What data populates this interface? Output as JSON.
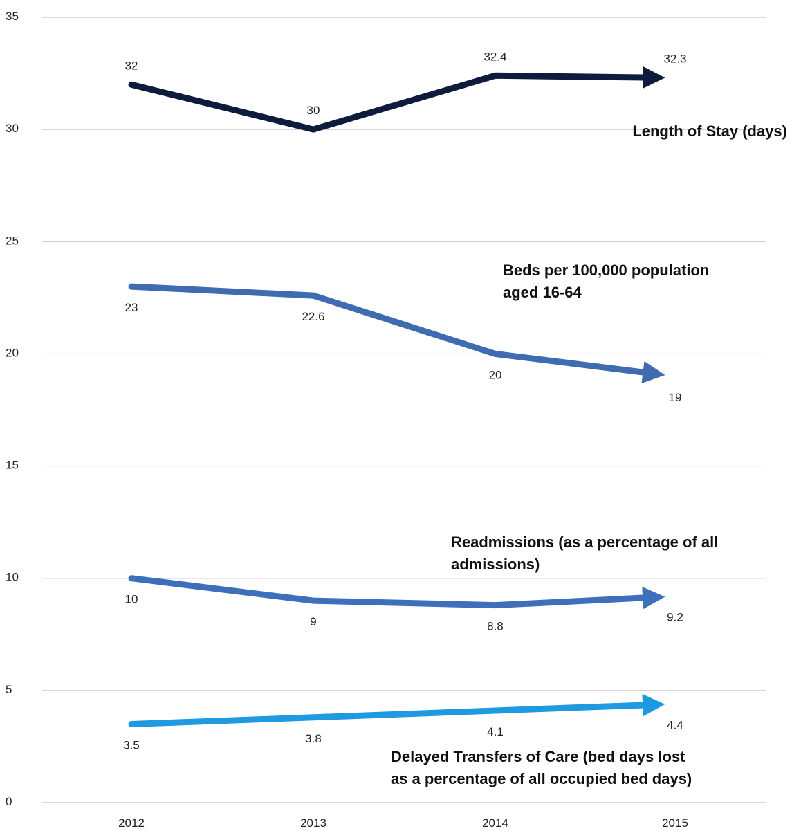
{
  "chart_data": {
    "type": "line",
    "categories": [
      "2012",
      "2013",
      "2014",
      "2015"
    ],
    "ylim": [
      0,
      35
    ],
    "yticks": [
      "0",
      "5",
      "10",
      "15",
      "20",
      "25",
      "30",
      "35"
    ],
    "grid": true,
    "series": [
      {
        "name": "Length of Stay (days)",
        "values": [
          32,
          30,
          32.4,
          32.3
        ],
        "labels": [
          "32",
          "30",
          "32.4",
          "32.3"
        ],
        "color": "#0f1b3d",
        "label_lines": [
          "Length of Stay (days)"
        ]
      },
      {
        "name": "Beds per 100,000 population aged 16-64",
        "values": [
          23,
          22.6,
          20,
          19
        ],
        "labels": [
          "23",
          "22.6",
          "20",
          "19"
        ],
        "color": "#3f6bb0",
        "label_lines": [
          "Beds per 100,000 population",
          "aged 16-64"
        ]
      },
      {
        "name": "Readmissions (as a percentage of all admissions)",
        "values": [
          10,
          9,
          8.8,
          9.2
        ],
        "labels": [
          "10",
          "9",
          "8.8",
          "9.2"
        ],
        "color": "#3e6fba",
        "label_lines": [
          "Readmissions (as a percentage of all",
          "admissions)"
        ]
      },
      {
        "name": "Delayed Transfers of Care (bed days lost as a percentage of all occupied bed days)",
        "values": [
          3.5,
          3.8,
          4.1,
          4.4
        ],
        "labels": [
          "3.5",
          "3.8",
          "4.1",
          "4.4"
        ],
        "color": "#1f9ae0",
        "label_lines": [
          "Delayed Transfers of Care (bed days lost",
          "as a percentage of all occupied bed days)"
        ]
      }
    ]
  }
}
